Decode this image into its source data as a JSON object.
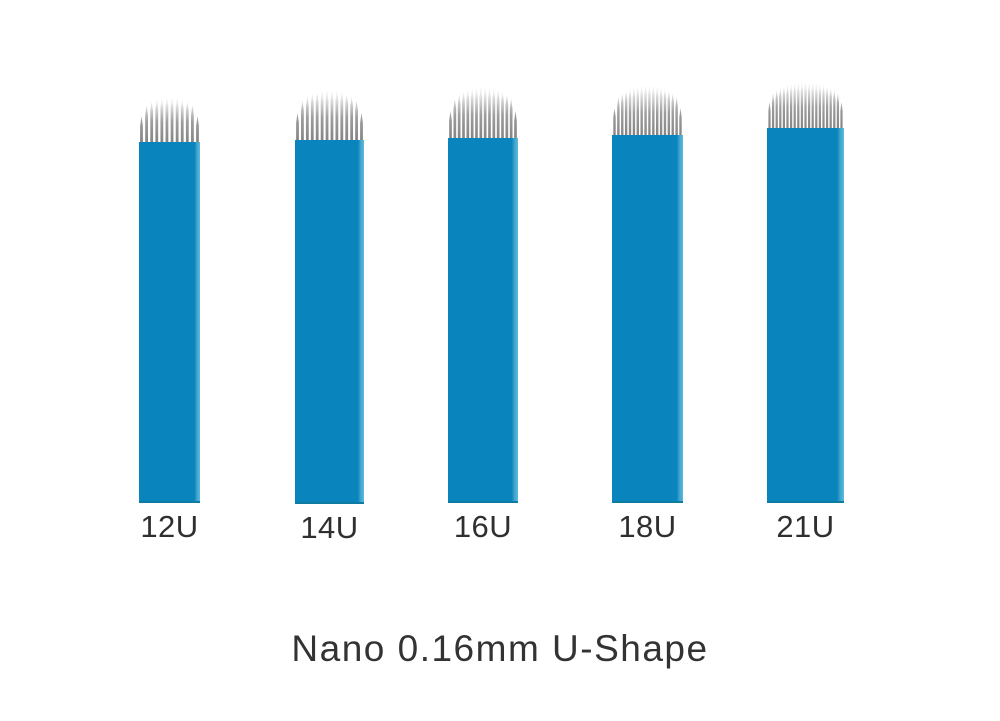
{
  "page": {
    "background": "#ffffff",
    "caption": "Nano 0.16mm U-Shape"
  },
  "colors": {
    "blade": "#0a84bc",
    "blade_edge_highlight": "#5fb8dc",
    "blade_bottom_edge": "#0e7ba2",
    "needle_dark": "#858585",
    "needle_mid": "#9e9e9e",
    "needle_tip": "#e8e8e8",
    "label_text": "#2f2f2f",
    "caption_text": "#333333"
  },
  "blades": [
    {
      "label": "12U",
      "needle_count": 12
    },
    {
      "label": "14U",
      "needle_count": 14
    },
    {
      "label": "16U",
      "needle_count": 16
    },
    {
      "label": "18U",
      "needle_count": 18
    },
    {
      "label": "21U",
      "needle_count": 21
    }
  ]
}
